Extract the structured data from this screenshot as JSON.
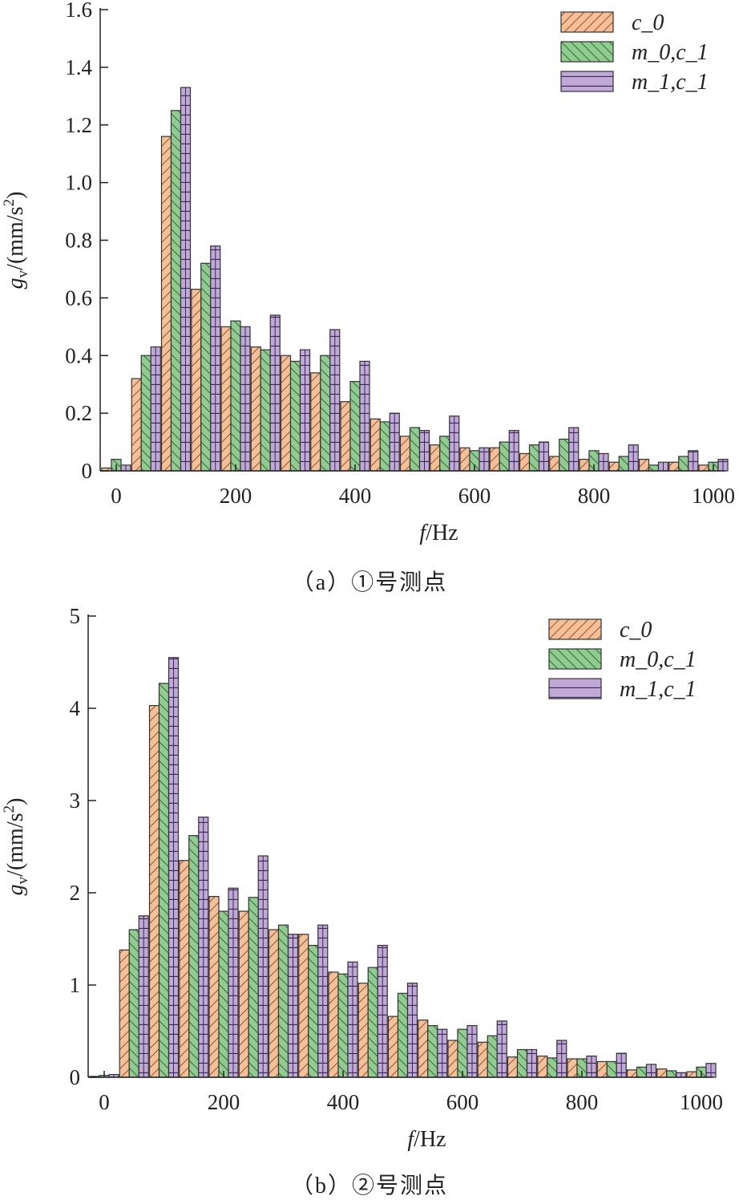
{
  "chart_data": [
    {
      "type": "bar",
      "caption": "（a）①号测点",
      "xlabel_italic": "f",
      "xlabel_unit": "/Hz",
      "ylabel_sym": "g",
      "ylabel_sub": "v",
      "ylabel_unit": "/(mm/s",
      "ylabel_sup": "2",
      "ylabel_close": ")",
      "xlim": [
        0,
        1000
      ],
      "ylim": [
        0,
        1.6
      ],
      "xticks": [
        "0",
        "200",
        "400",
        "600",
        "800",
        "1000"
      ],
      "yticks": [
        "0",
        "0.2",
        "0.4",
        "0.6",
        "0.8",
        "1.0",
        "1.2",
        "1.4",
        "1.6"
      ],
      "legend_position": "top-right",
      "x": [
        0,
        50,
        100,
        150,
        200,
        250,
        300,
        350,
        400,
        450,
        500,
        550,
        600,
        650,
        700,
        750,
        800,
        850,
        900,
        950,
        1000
      ],
      "series": [
        {
          "name": "c_0",
          "color": "#f6bf95",
          "pattern": "diagonal-forward",
          "values": [
            0.01,
            0.32,
            1.16,
            0.63,
            0.5,
            0.43,
            0.4,
            0.34,
            0.24,
            0.18,
            0.12,
            0.09,
            0.08,
            0.08,
            0.06,
            0.05,
            0.04,
            0.03,
            0.04,
            0.03,
            0.02
          ]
        },
        {
          "name": "m_0,c_1",
          "color": "#8fcc8f",
          "pattern": "diagonal-back",
          "values": [
            0.04,
            0.4,
            1.25,
            0.72,
            0.52,
            0.42,
            0.38,
            0.4,
            0.31,
            0.17,
            0.15,
            0.12,
            0.07,
            0.1,
            0.09,
            0.11,
            0.07,
            0.05,
            0.02,
            0.05,
            0.03
          ]
        },
        {
          "name": "m_1,c_1",
          "color": "#c0a8d8",
          "pattern": "grid",
          "values": [
            0.02,
            0.43,
            1.33,
            0.78,
            0.5,
            0.54,
            0.42,
            0.49,
            0.38,
            0.2,
            0.14,
            0.19,
            0.08,
            0.14,
            0.1,
            0.15,
            0.06,
            0.09,
            0.03,
            0.07,
            0.04
          ]
        }
      ]
    },
    {
      "type": "bar",
      "caption": "（b）②号测点",
      "xlabel_italic": "f",
      "xlabel_unit": "/Hz",
      "ylabel_sym": "g",
      "ylabel_sub": "v",
      "ylabel_unit": "/(mm/s",
      "ylabel_sup": "2",
      "ylabel_close": ")",
      "xlim": [
        0,
        1000
      ],
      "ylim": [
        0,
        5
      ],
      "xticks": [
        "0",
        "200",
        "400",
        "600",
        "800",
        "1000"
      ],
      "yticks": [
        "0",
        "1",
        "2",
        "3",
        "4",
        "5"
      ],
      "legend_position": "top-right",
      "x": [
        0,
        50,
        100,
        150,
        200,
        250,
        300,
        350,
        400,
        450,
        500,
        550,
        600,
        650,
        700,
        750,
        800,
        850,
        900,
        950,
        1000
      ],
      "series": [
        {
          "name": "c_0",
          "color": "#f6bf95",
          "pattern": "diagonal-forward",
          "values": [
            0.01,
            1.38,
            4.03,
            2.35,
            1.96,
            1.8,
            1.6,
            1.55,
            1.14,
            1.02,
            0.66,
            0.62,
            0.4,
            0.38,
            0.22,
            0.23,
            0.2,
            0.17,
            0.08,
            0.09,
            0.06
          ]
        },
        {
          "name": "m_0,c_1",
          "color": "#8fcc8f",
          "pattern": "diagonal-back",
          "values": [
            0.02,
            1.6,
            4.27,
            2.62,
            1.8,
            1.95,
            1.65,
            1.43,
            1.12,
            1.19,
            0.91,
            0.56,
            0.52,
            0.45,
            0.3,
            0.21,
            0.2,
            0.17,
            0.11,
            0.07,
            0.11
          ]
        },
        {
          "name": "m_1,c_1",
          "color": "#c0a8d8",
          "pattern": "grid",
          "values": [
            0.03,
            1.75,
            4.55,
            2.82,
            2.05,
            2.4,
            1.55,
            1.65,
            1.25,
            1.43,
            1.02,
            0.52,
            0.56,
            0.61,
            0.3,
            0.4,
            0.23,
            0.26,
            0.14,
            0.05,
            0.15
          ]
        }
      ]
    }
  ]
}
